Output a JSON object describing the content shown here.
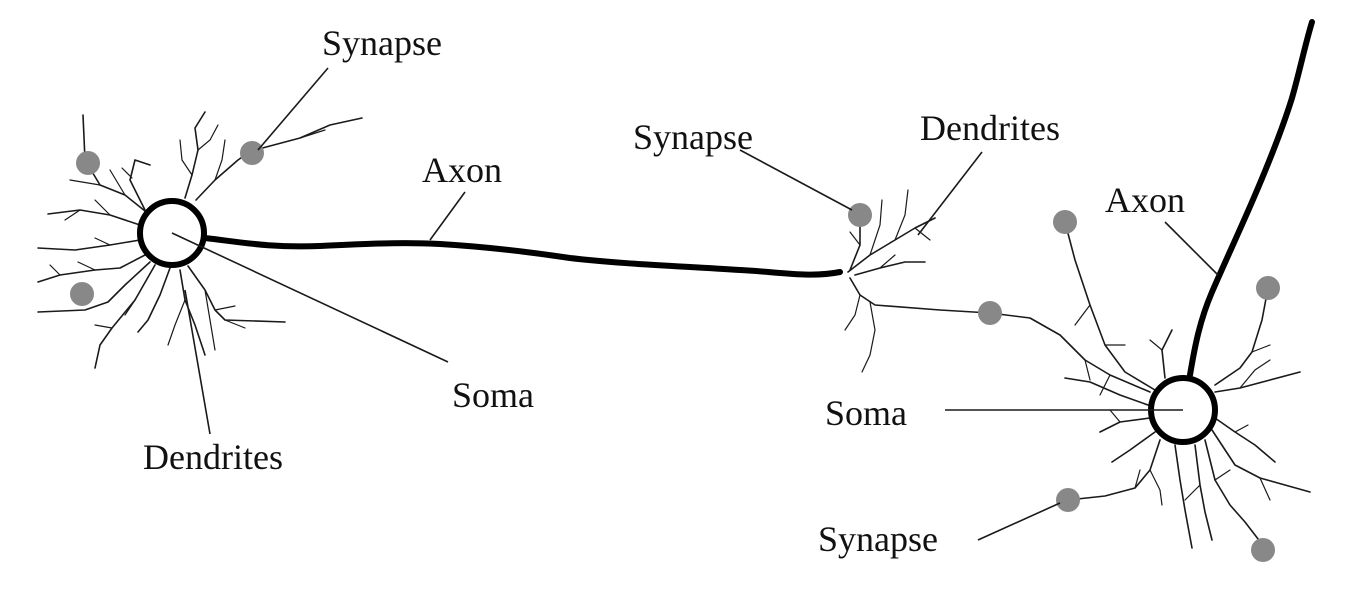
{
  "colors": {
    "synapse": "#888888",
    "ink": "#000000",
    "background": "#ffffff"
  },
  "labels": {
    "synapse_top_left": "Synapse",
    "axon_left": "Axon",
    "soma_left": "Soma",
    "dendrites_left": "Dendrites",
    "synapse_middle": "Synapse",
    "dendrites_right": "Dendrites",
    "axon_right": "Axon",
    "soma_right": "Soma",
    "synapse_bottom_right": "Synapse"
  }
}
